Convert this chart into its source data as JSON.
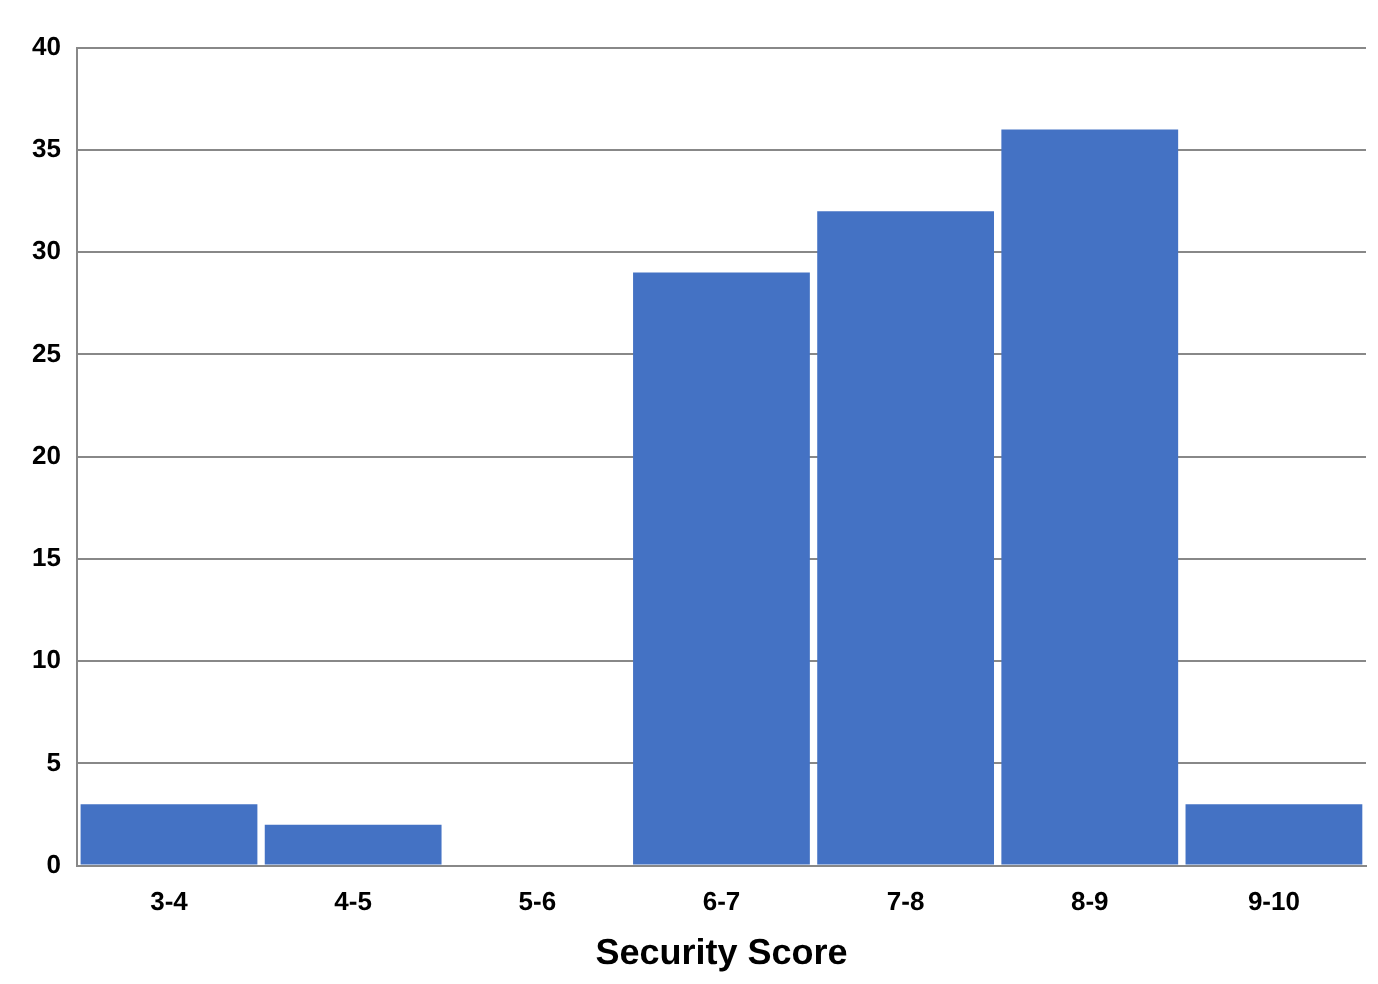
{
  "chart_data": {
    "type": "bar",
    "xlabel": "Security Score",
    "categories": [
      "3-4",
      "4-5",
      "5-6",
      "6-7",
      "7-8",
      "8-9",
      "9-10"
    ],
    "values": [
      3,
      2,
      0,
      29,
      32,
      36,
      3
    ],
    "color": "#4472c4",
    "ylim": [
      0,
      40
    ],
    "yticks": [
      0,
      5,
      10,
      15,
      20,
      25,
      30,
      35,
      40
    ],
    "grid": "y",
    "legend": false
  }
}
